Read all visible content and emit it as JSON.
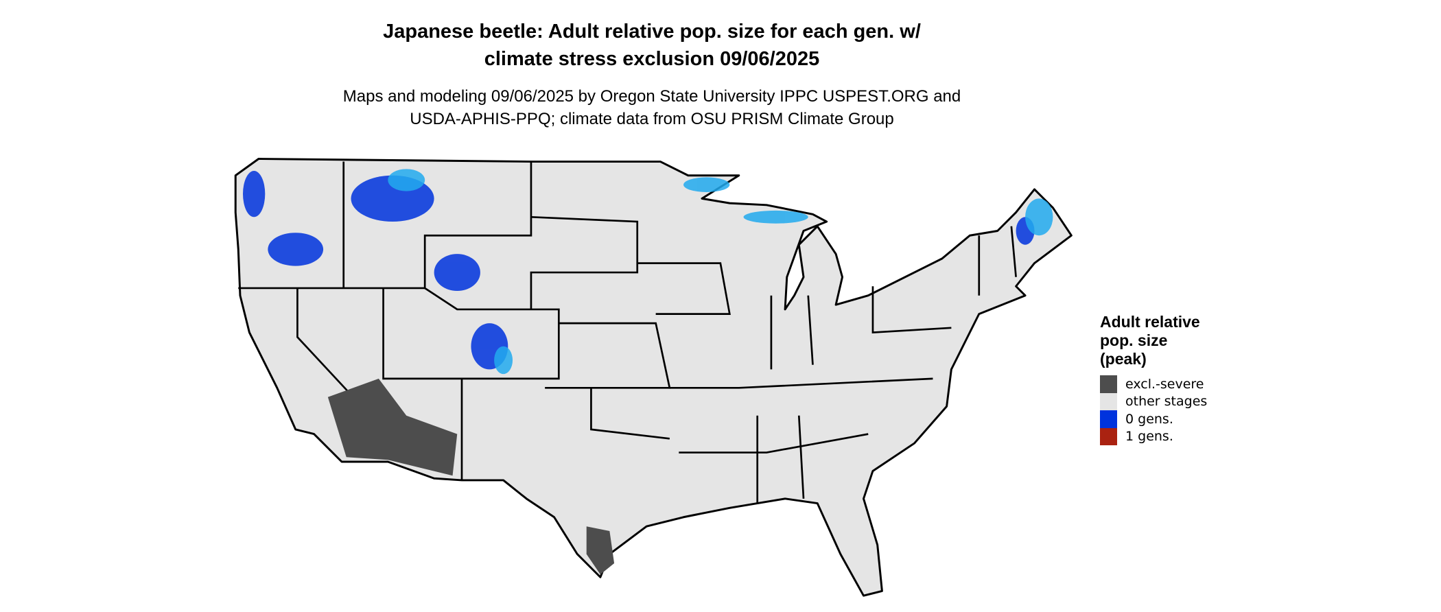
{
  "title": {
    "line1": "Japanese beetle: Adult relative pop. size for each gen. w/",
    "line2": "climate stress exclusion 09/06/2025"
  },
  "subtitle": {
    "line1": "Maps and modeling 09/06/2025 by Oregon State University IPPC USPEST.ORG and",
    "line2": "USDA-APHIS-PPQ; climate data from OSU PRISM Climate Group"
  },
  "legend": {
    "title_lines": [
      "Adult relative",
      "pop. size",
      "(peak)"
    ],
    "items": [
      {
        "label": "excl.-severe",
        "color": "#4d4d4d"
      },
      {
        "label": "other stages",
        "color": "#e5e5e5"
      },
      {
        "label": "0 gens.",
        "color": "#0033dd"
      },
      {
        "label": "1 gens.",
        "color": "#aa2211"
      }
    ]
  },
  "colors": {
    "background": "#e5e5e5",
    "border": "#000000",
    "light_blue": "#22aaee"
  }
}
